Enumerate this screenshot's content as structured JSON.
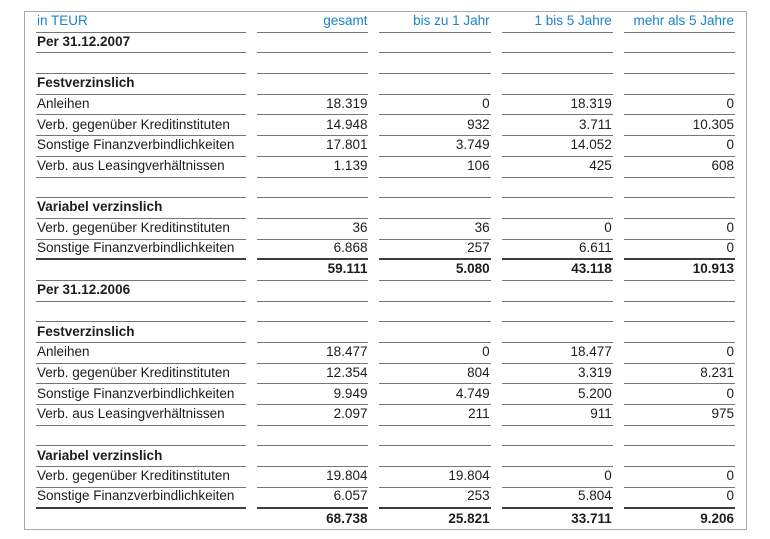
{
  "colors": {
    "header_text_blue": "#1b83c6",
    "body_text": "#1c1c1c",
    "rule_thin": "#767676",
    "rule_thick": "#3d3d3d",
    "frame_border": "#a9a9a9",
    "background": "#ffffff"
  },
  "table": {
    "unit_label": "in TEUR",
    "columns": [
      "gesamt",
      "bis zu 1 Jahr",
      "1 bis 5 Jahre",
      "mehr als 5 Jahre"
    ],
    "rows": [
      {
        "type": "section",
        "label": "Per 31.12.2007",
        "values": [
          "",
          "",
          "",
          ""
        ]
      },
      {
        "type": "empty",
        "label": "",
        "values": [
          "",
          "",
          "",
          ""
        ]
      },
      {
        "type": "section",
        "label": "Festverzinslich",
        "values": [
          "",
          "",
          "",
          ""
        ]
      },
      {
        "type": "data",
        "label": "Anleihen",
        "values": [
          "18.319",
          "0",
          "18.319",
          "0"
        ]
      },
      {
        "type": "data",
        "label": "Verb. gegenüber Kreditinstituten",
        "values": [
          "14.948",
          "932",
          "3.711",
          "10.305"
        ]
      },
      {
        "type": "data",
        "label": "Sonstige Finanzverbindlichkeiten",
        "values": [
          "17.801",
          "3.749",
          "14.052",
          "0"
        ]
      },
      {
        "type": "data",
        "label": "Verb. aus Leasingverhältnissen",
        "values": [
          "1.139",
          "106",
          "425",
          "608"
        ]
      },
      {
        "type": "empty",
        "label": "",
        "values": [
          "",
          "",
          "",
          ""
        ]
      },
      {
        "type": "section",
        "label": "Variabel verzinslich",
        "values": [
          "",
          "",
          "",
          ""
        ]
      },
      {
        "type": "data",
        "label": "Verb. gegenüber Kreditinstituten",
        "values": [
          "36",
          "36",
          "0",
          "0"
        ]
      },
      {
        "type": "data thick",
        "label": "Sonstige Finanzverbindlichkeiten",
        "values": [
          "6.868",
          "257",
          "6.611",
          "0"
        ]
      },
      {
        "type": "total",
        "label": "",
        "values": [
          "59.111",
          "5.080",
          "43.118",
          "10.913"
        ]
      },
      {
        "type": "section",
        "label": "Per 31.12.2006",
        "values": [
          "",
          "",
          "",
          ""
        ]
      },
      {
        "type": "empty",
        "label": "",
        "values": [
          "",
          "",
          "",
          ""
        ]
      },
      {
        "type": "section",
        "label": "Festverzinslich",
        "values": [
          "",
          "",
          "",
          ""
        ]
      },
      {
        "type": "data",
        "label": "Anleihen",
        "values": [
          "18.477",
          "0",
          "18.477",
          "0"
        ]
      },
      {
        "type": "data",
        "label": "Verb. gegenüber Kreditinstituten",
        "values": [
          "12.354",
          "804",
          "3.319",
          "8.231"
        ]
      },
      {
        "type": "data",
        "label": "Sonstige Finanzverbindlichkeiten",
        "values": [
          "9.949",
          "4.749",
          "5.200",
          "0"
        ]
      },
      {
        "type": "data",
        "label": "Verb. aus Leasingverhältnissen",
        "values": [
          "2.097",
          "211",
          "911",
          "975"
        ]
      },
      {
        "type": "empty",
        "label": "",
        "values": [
          "",
          "",
          "",
          ""
        ]
      },
      {
        "type": "section",
        "label": "Variabel verzinslich",
        "values": [
          "",
          "",
          "",
          ""
        ]
      },
      {
        "type": "data",
        "label": "Verb. gegenüber Kreditinstituten",
        "values": [
          "19.804",
          "19.804",
          "0",
          "0"
        ]
      },
      {
        "type": "data thick",
        "label": "Sonstige Finanzverbindlichkeiten",
        "values": [
          "6.057",
          "253",
          "5.804",
          "0"
        ]
      },
      {
        "type": "total nob",
        "label": "",
        "values": [
          "68.738",
          "25.821",
          "33.711",
          "9.206"
        ]
      }
    ]
  }
}
